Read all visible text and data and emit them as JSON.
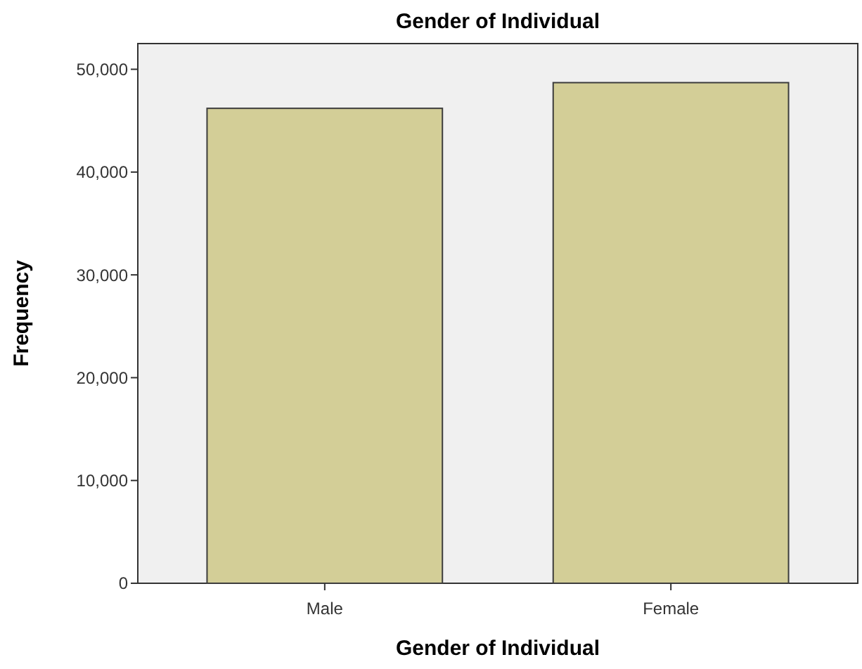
{
  "chart_data": {
    "type": "bar",
    "title": "Gender of Individual",
    "xlabel": "Gender of Individual",
    "ylabel": "Frequency",
    "categories": [
      "Male",
      "Female"
    ],
    "values": [
      46200,
      48700
    ],
    "color": "#d3ce97",
    "ylim": [
      0,
      52500
    ],
    "yticks": [
      {
        "value": 0,
        "label": "0"
      },
      {
        "value": 10000,
        "label": "10,000"
      },
      {
        "value": 20000,
        "label": "20,000"
      },
      {
        "value": 30000,
        "label": "30,000"
      },
      {
        "value": 40000,
        "label": "40,000"
      },
      {
        "value": 50000,
        "label": "50,000"
      }
    ],
    "grid": false
  }
}
